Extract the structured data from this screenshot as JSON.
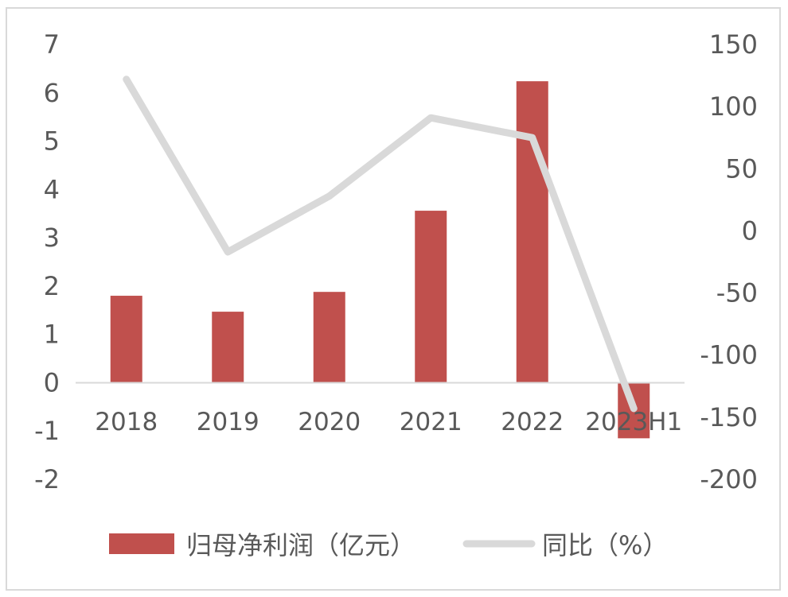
{
  "chart_data": {
    "type": "bar+line",
    "categories": [
      "2018",
      "2019",
      "2020",
      "2021",
      "2022",
      "2023H1"
    ],
    "series": [
      {
        "name": "归母净利润（亿元）",
        "type": "bar",
        "axis": "left",
        "values": [
          1.8,
          1.47,
          1.88,
          3.56,
          6.24,
          -1.15
        ],
        "color": "#c0504d"
      },
      {
        "name": "同比（%）",
        "type": "line",
        "axis": "right",
        "values": [
          122,
          -17,
          28,
          91,
          75,
          -143
        ],
        "color": "#d9d9d9"
      }
    ],
    "y_left": {
      "ylim": [
        -2,
        7
      ],
      "ticks": [
        "7",
        "6",
        "5",
        "4",
        "3",
        "2",
        "1",
        "0",
        "-1",
        "-2"
      ]
    },
    "y_right": {
      "ylim": [
        -200,
        150
      ],
      "ticks": [
        "150",
        "100",
        "50",
        "0",
        "-50",
        "-100",
        "-150",
        "-200"
      ]
    },
    "grid": false,
    "legend": "bottom"
  }
}
